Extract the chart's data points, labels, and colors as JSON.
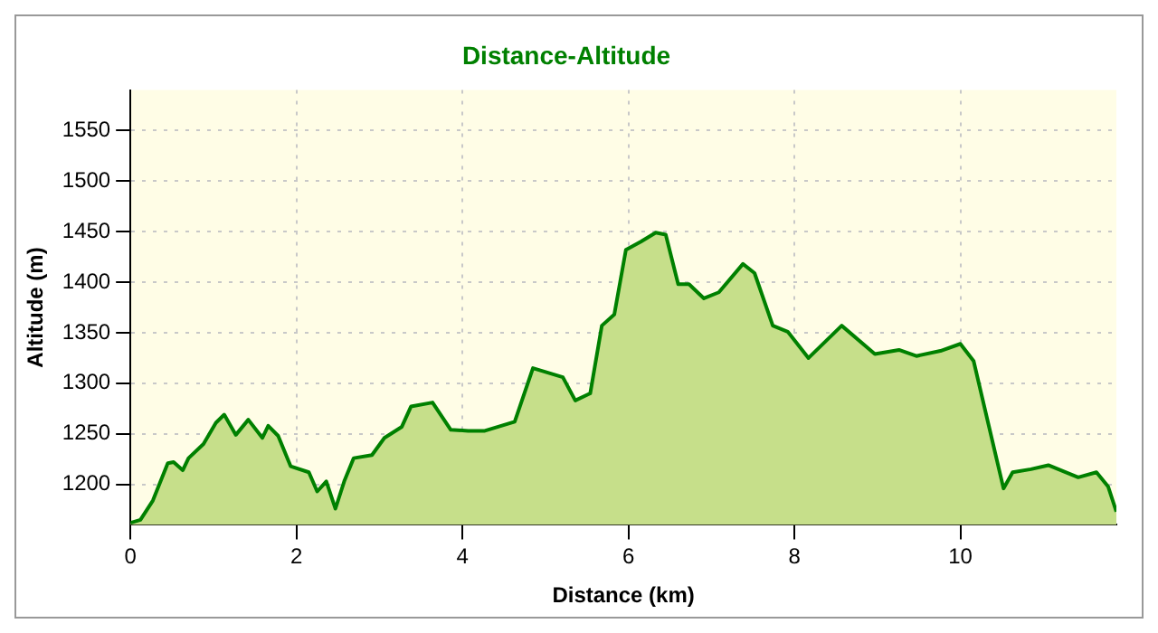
{
  "chart_data": {
    "type": "area",
    "title": "Distance-Altitude",
    "xlabel": "Distance (km)",
    "ylabel": "Altitude (m)",
    "x": [
      0,
      0.12,
      0.27,
      0.45,
      0.52,
      0.63,
      0.7,
      0.88,
      1.03,
      1.13,
      1.27,
      1.42,
      1.59,
      1.66,
      1.78,
      1.93,
      2.15,
      2.25,
      2.36,
      2.47,
      2.58,
      2.69,
      2.91,
      3.06,
      3.27,
      3.38,
      3.64,
      3.86,
      4.07,
      4.27,
      4.63,
      4.85,
      5.21,
      5.36,
      5.54,
      5.68,
      5.83,
      5.97,
      6.15,
      6.33,
      6.45,
      6.6,
      6.73,
      6.91,
      7.09,
      7.38,
      7.52,
      7.74,
      7.92,
      8.17,
      8.57,
      8.97,
      9.26,
      9.47,
      9.76,
      10.0,
      10.16,
      10.34,
      10.52,
      10.63,
      10.85,
      11.06,
      11.42,
      11.64,
      11.78,
      11.88
    ],
    "series": [
      {
        "color": "#008000",
        "values": [
          1162,
          1165,
          1184,
          1221,
          1222,
          1214,
          1226,
          1240,
          1261,
          1269,
          1249,
          1264,
          1246,
          1258,
          1248,
          1218,
          1212,
          1193,
          1203,
          1176,
          1204,
          1226,
          1229,
          1246,
          1257,
          1277,
          1281,
          1254,
          1253,
          1253,
          1262,
          1315,
          1306,
          1283,
          1290,
          1357,
          1368,
          1432,
          1440,
          1449,
          1447,
          1398,
          1398,
          1384,
          1390,
          1418,
          1409,
          1357,
          1351,
          1325,
          1357,
          1329,
          1333,
          1327,
          1332,
          1339,
          1322,
          1259,
          1196,
          1212,
          1215,
          1219,
          1207,
          1212,
          1198,
          1173
        ]
      }
    ],
    "xlim": [
      0,
      11.88
    ],
    "ylim": [
      1160,
      1590
    ],
    "xticks": [
      0,
      2,
      4,
      6,
      8,
      10
    ],
    "yticks": [
      1200,
      1250,
      1300,
      1350,
      1400,
      1450,
      1500,
      1550
    ],
    "grid": true,
    "legend": false
  }
}
